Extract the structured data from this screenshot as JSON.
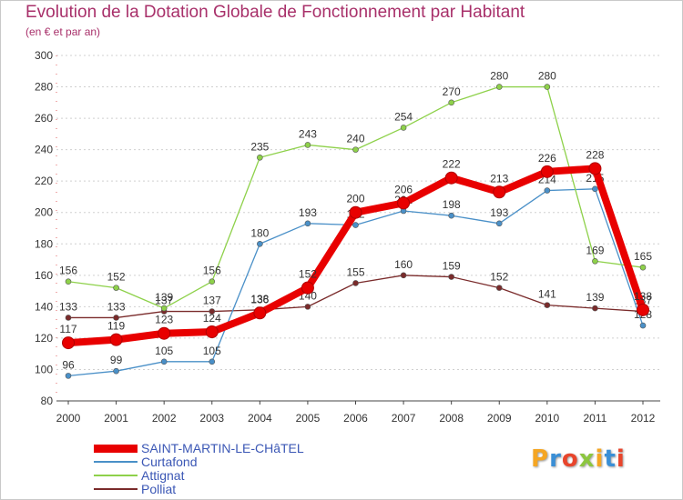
{
  "header": {
    "title": "Evolution de la Dotation Globale de Fonctionnement par Habitant",
    "subtitle": "(en € et par an)"
  },
  "logo": {
    "text": "Proxiti"
  },
  "chart_data": {
    "type": "line",
    "title": "Evolution de la Dotation Globale de Fonctionnement par Habitant",
    "subtitle": "(en € et par an)",
    "xlabel": "",
    "ylabel": "",
    "ylim": [
      80,
      300
    ],
    "yticks": [
      80,
      100,
      120,
      140,
      160,
      180,
      200,
      220,
      240,
      260,
      280,
      300
    ],
    "grid": "horizontal dotted",
    "legend_position": "bottom-left",
    "categories": [
      "2000",
      "2001",
      "2002",
      "2003",
      "2004",
      "2005",
      "2006",
      "2007",
      "2008",
      "2009",
      "2010",
      "2011",
      "2012"
    ],
    "series": [
      {
        "name": "Polliat",
        "color": "#7a2b2b",
        "values": [
          133,
          133,
          137,
          137,
          138,
          140,
          155,
          160,
          159,
          152,
          141,
          139,
          137
        ],
        "labels": [
          "133",
          "133",
          "137",
          "137",
          "138",
          "140",
          "155",
          "160",
          "159",
          "152",
          "141",
          "139",
          "137"
        ]
      },
      {
        "name": "Curtafond",
        "color": "#4a90c8",
        "values": [
          96,
          99,
          105,
          105,
          180,
          193,
          192,
          201,
          198,
          193,
          214,
          215,
          128
        ],
        "labels": [
          "96",
          "99",
          "105",
          "105",
          "180",
          "193",
          "192",
          "201",
          "198",
          "193",
          "214",
          "215",
          "128"
        ]
      },
      {
        "name": "Attignat",
        "color": "#8ed14a",
        "values": [
          156,
          152,
          139,
          156,
          235,
          243,
          240,
          254,
          270,
          280,
          280,
          169,
          165
        ],
        "labels": [
          "156",
          "152",
          "139",
          "156",
          "235",
          "243",
          "240",
          "254",
          "270",
          "280",
          "280",
          "169",
          "165"
        ]
      },
      {
        "name": "SAINT-MARTIN-LE-CHâTEL",
        "color": "#e80000",
        "values": [
          117,
          119,
          123,
          124,
          136,
          152,
          200,
          206,
          222,
          213,
          226,
          228,
          138
        ],
        "labels": [
          "117",
          "119",
          "123",
          "124",
          "136",
          "152",
          "200",
          "206",
          "222",
          "213",
          "226",
          "228",
          "138"
        ]
      }
    ],
    "legend": [
      "SAINT-MARTIN-LE-CHâTEL",
      "Curtafond",
      "Attignat",
      "Polliat"
    ]
  }
}
